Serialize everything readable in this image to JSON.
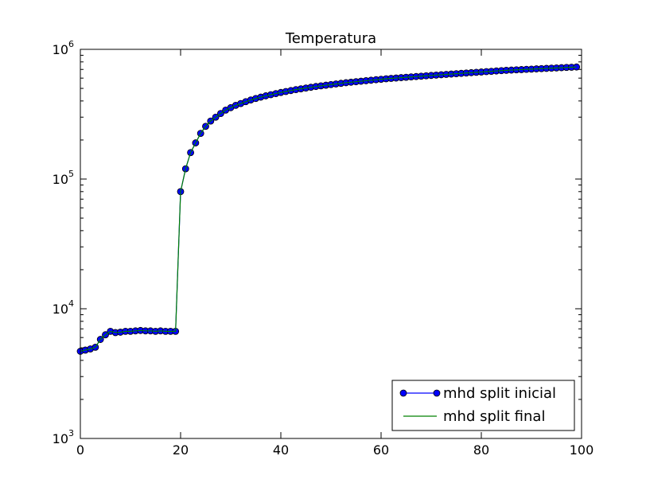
{
  "chart_data": {
    "type": "line",
    "title": "Temperatura",
    "xlabel": "",
    "ylabel": "",
    "xlim": [
      0,
      100
    ],
    "ylim": [
      1000,
      1000000
    ],
    "yscale": "log",
    "grid": false,
    "legend_position": "lower-right",
    "x_ticks": [
      {
        "value": 0,
        "label": "0"
      },
      {
        "value": 20,
        "label": "20"
      },
      {
        "value": 40,
        "label": "40"
      },
      {
        "value": 60,
        "label": "60"
      },
      {
        "value": 80,
        "label": "80"
      },
      {
        "value": 100,
        "label": "100"
      }
    ],
    "y_ticks": [
      {
        "value": 1000,
        "base": "10",
        "exp": "3"
      },
      {
        "value": 10000,
        "base": "10",
        "exp": "4"
      },
      {
        "value": 100000,
        "base": "10",
        "exp": "5"
      },
      {
        "value": 1000000,
        "base": "10",
        "exp": "6"
      }
    ],
    "x": [
      0,
      1,
      2,
      3,
      4,
      5,
      6,
      7,
      8,
      9,
      10,
      11,
      12,
      13,
      14,
      15,
      16,
      17,
      18,
      19,
      20,
      21,
      22,
      23,
      24,
      25,
      26,
      27,
      28,
      29,
      30,
      31,
      32,
      33,
      34,
      35,
      36,
      37,
      38,
      39,
      40,
      41,
      42,
      43,
      44,
      45,
      46,
      47,
      48,
      49,
      50,
      51,
      52,
      53,
      54,
      55,
      56,
      57,
      58,
      59,
      60,
      61,
      62,
      63,
      64,
      65,
      66,
      67,
      68,
      69,
      70,
      71,
      72,
      73,
      74,
      75,
      76,
      77,
      78,
      79,
      80,
      81,
      82,
      83,
      84,
      85,
      86,
      87,
      88,
      89,
      90,
      91,
      92,
      93,
      94,
      95,
      96,
      97,
      98,
      99
    ],
    "series": [
      {
        "name": "mhd split inicial",
        "color": "#0000ff",
        "marker": "circle",
        "values": [
          4700,
          4800,
          4900,
          5050,
          5800,
          6300,
          6700,
          6550,
          6600,
          6700,
          6700,
          6750,
          6800,
          6750,
          6750,
          6700,
          6750,
          6700,
          6700,
          6700,
          80000,
          120000,
          160000,
          190000,
          225000,
          255000,
          280000,
          300000,
          320000,
          340000,
          355000,
          370000,
          382000,
          395000,
          407000,
          418000,
          428000,
          438000,
          447000,
          456000,
          465000,
          473000,
          481000,
          489000,
          496000,
          503000,
          510000,
          517000,
          523000,
          529000,
          535000,
          541000,
          547000,
          553000,
          558000,
          563000,
          568000,
          573000,
          578000,
          583000,
          588000,
          593000,
          597000,
          601000,
          605000,
          609000,
          613000,
          617000,
          621000,
          625000,
          629000,
          633000,
          637000,
          641000,
          645000,
          649000,
          653000,
          657000,
          661000,
          665000,
          669000,
          673000,
          677000,
          681000,
          685000,
          689000,
          692000,
          695000,
          698000,
          701000,
          704000,
          707000,
          710000,
          713000,
          716000,
          719000,
          722000,
          725000,
          728000,
          731000
        ]
      },
      {
        "name": "mhd split final",
        "color": "#008000",
        "marker": "none",
        "values": [
          4700,
          4800,
          4900,
          5050,
          5800,
          6300,
          6700,
          6550,
          6600,
          6700,
          6700,
          6750,
          6800,
          6750,
          6750,
          6700,
          6750,
          6700,
          6700,
          6700,
          80000,
          120000,
          160000,
          190000,
          225000,
          255000,
          280000,
          300000,
          320000,
          340000,
          355000,
          370000,
          382000,
          395000,
          407000,
          418000,
          428000,
          438000,
          447000,
          456000,
          465000,
          473000,
          481000,
          489000,
          496000,
          503000,
          510000,
          517000,
          523000,
          529000,
          535000,
          541000,
          547000,
          553000,
          558000,
          563000,
          568000,
          573000,
          578000,
          583000,
          588000,
          593000,
          597000,
          601000,
          605000,
          609000,
          613000,
          617000,
          621000,
          625000,
          629000,
          633000,
          637000,
          641000,
          645000,
          649000,
          653000,
          657000,
          661000,
          665000,
          669000,
          673000,
          677000,
          681000,
          685000,
          689000,
          692000,
          695000,
          698000,
          701000,
          704000,
          707000,
          710000,
          713000,
          716000,
          719000,
          722000,
          725000,
          728000,
          731000
        ]
      }
    ]
  }
}
